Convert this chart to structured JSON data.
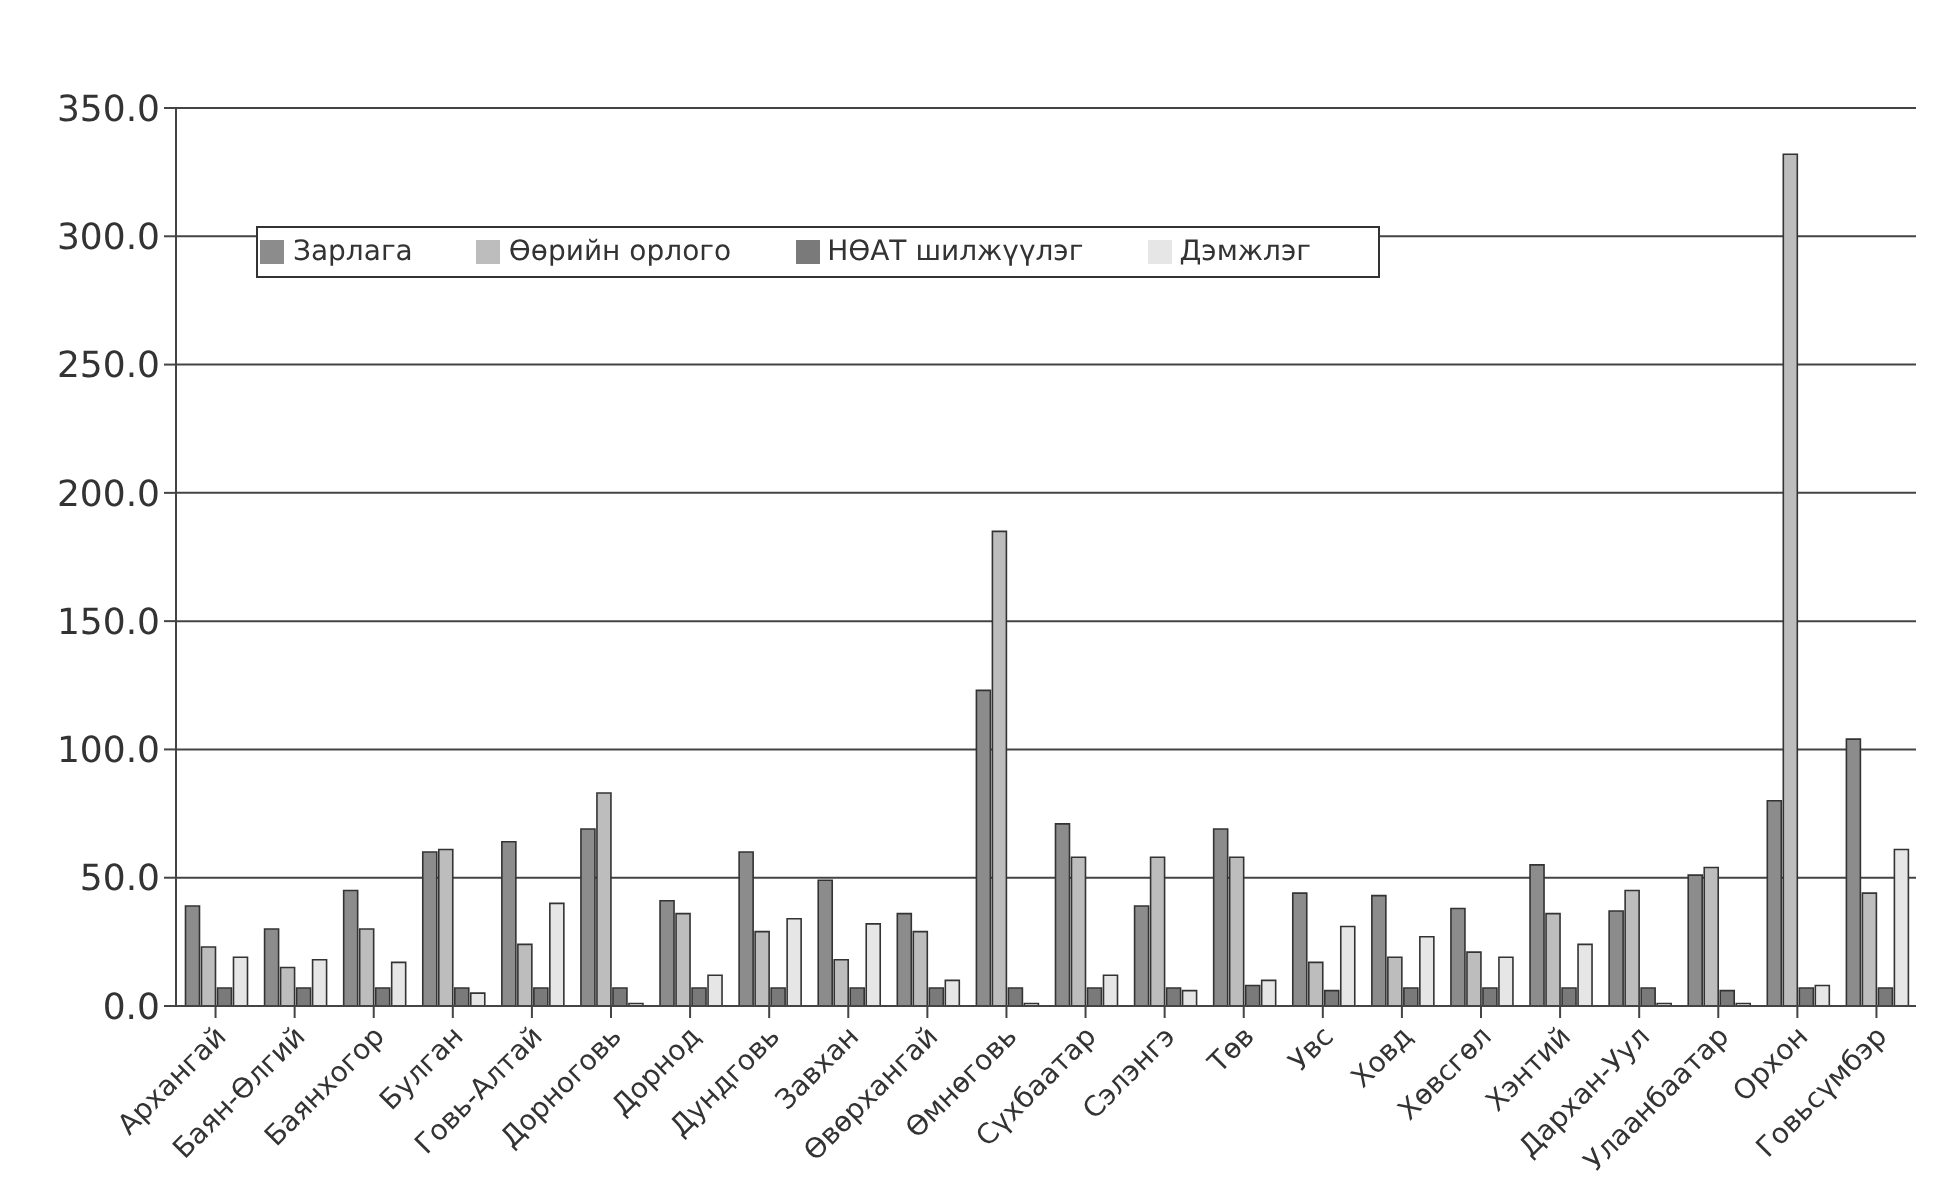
{
  "chart_data": {
    "type": "bar",
    "categories": [
      "Архангай",
      "Баян-Өлгий",
      "Баянхогор",
      "Булган",
      "Говь-Алтай",
      "Дорноговь",
      "Дорнод",
      "Дундговь",
      "Завхан",
      "Өвөрхангай",
      "Өмнөговь",
      "Сүхбаатар",
      "Сэлэнгэ",
      "Төв",
      "Увс",
      "Ховд",
      "Хөвсгөл",
      "Хэнтий",
      "Дархан-Уул",
      "Улаанбаатар",
      "Орхон",
      "Говьсүмбэр"
    ],
    "series": [
      {
        "name": "Зарлага",
        "color": "#8c8c8c",
        "values": [
          39,
          30,
          45,
          60,
          64,
          69,
          41,
          60,
          49,
          36,
          123,
          71,
          39,
          69,
          44,
          43,
          38,
          55,
          37,
          51,
          80,
          104
        ]
      },
      {
        "name": "Өөрийн орлого",
        "color": "#bdbdbd",
        "values": [
          23,
          15,
          30,
          61,
          24,
          83,
          36,
          29,
          18,
          29,
          185,
          58,
          58,
          58,
          17,
          19,
          21,
          36,
          45,
          54,
          332,
          44
        ]
      },
      {
        "name": "НӨАТ шилжүүлэг",
        "color": "#7a7a7a",
        "values": [
          7,
          7,
          7,
          7,
          7,
          7,
          7,
          7,
          7,
          7,
          7,
          7,
          7,
          8,
          6,
          7,
          7,
          7,
          7,
          6,
          7,
          7
        ]
      },
      {
        "name": "Дэмжлэг",
        "color": "#e6e6e6",
        "values": [
          19,
          18,
          17,
          5,
          40,
          1,
          12,
          34,
          32,
          10,
          1,
          12,
          6,
          10,
          31,
          27,
          19,
          24,
          1,
          1,
          8,
          61
        ]
      }
    ],
    "ylim": [
      0,
      350
    ],
    "yticks": [
      {
        "value": 0,
        "label": "0.0"
      },
      {
        "value": 50,
        "label": "50.0"
      },
      {
        "value": 100,
        "label": "100.0"
      },
      {
        "value": 150,
        "label": "150.0"
      },
      {
        "value": 200,
        "label": "200.0"
      },
      {
        "value": 250,
        "label": "250.0"
      },
      {
        "value": 300,
        "label": "300.0"
      },
      {
        "value": 350,
        "label": "350.0"
      }
    ],
    "grid": "y",
    "legend": "top"
  }
}
